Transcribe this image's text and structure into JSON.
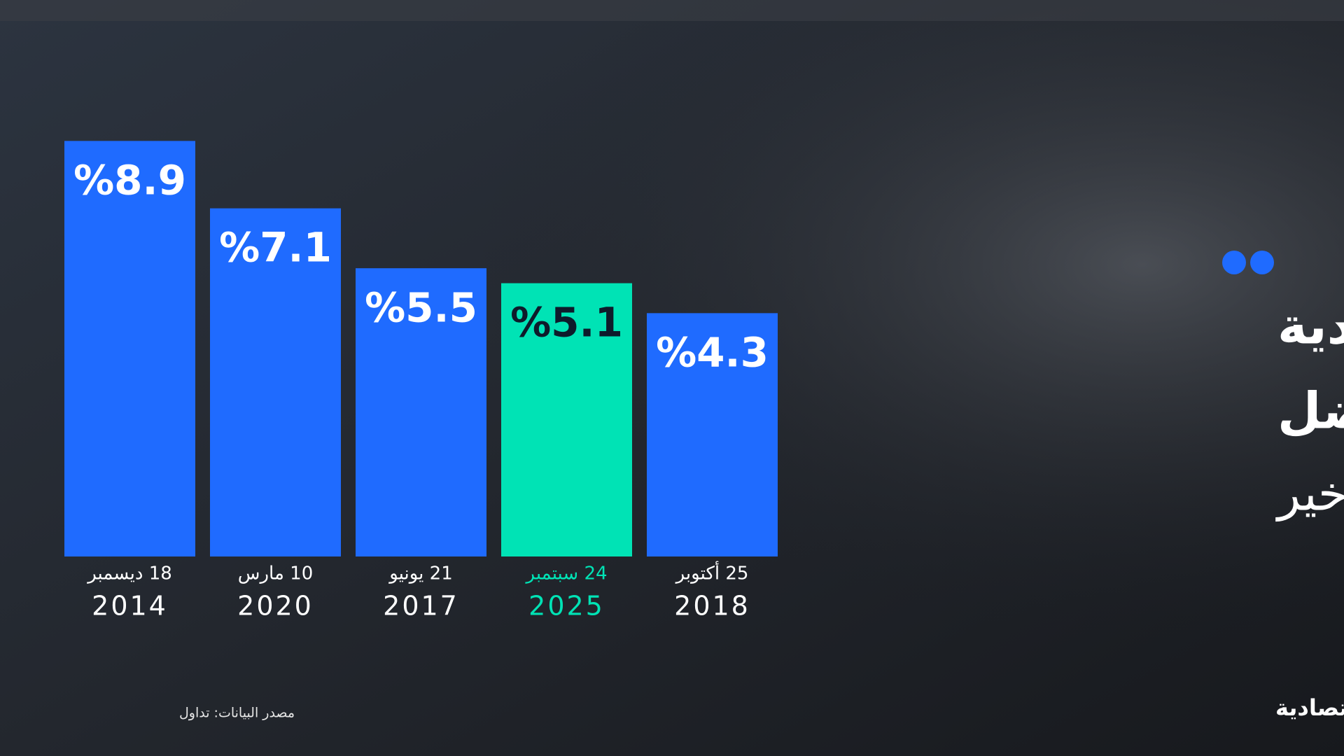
{
  "chart_data": {
    "type": "bar",
    "title_lines": [
      "الأسهم السعودية",
      "تسجل رابع أفضل",
      "أداء في العقد الأخير"
    ],
    "categories": [
      "18 ديسمبر",
      "10 مارس",
      "21 يونيو",
      "24 سبتمبر",
      "25 أكتوبر"
    ],
    "years": [
      "2014",
      "2020",
      "2017",
      "2025",
      "2018"
    ],
    "values": [
      8.9,
      7.1,
      5.5,
      5.1,
      4.3
    ],
    "value_labels": [
      "%8.9",
      "%7.1",
      "%5.5",
      "%5.1",
      "%4.3"
    ],
    "colors": [
      "#1f6bff",
      "#1f6bff",
      "#1f6bff",
      "#00e3b5",
      "#1f6bff"
    ],
    "label_colors": [
      "#ffffff",
      "#ffffff",
      "#ffffff",
      "#0e1b2b",
      "#ffffff"
    ],
    "category_colors": [
      "#ffffff",
      "#ffffff",
      "#ffffff",
      "#00e3b5",
      "#ffffff"
    ],
    "ylim": [
      -2.2,
      9
    ],
    "source": "مصدر البيانات: تداول",
    "logo": "الاقتصادية"
  }
}
